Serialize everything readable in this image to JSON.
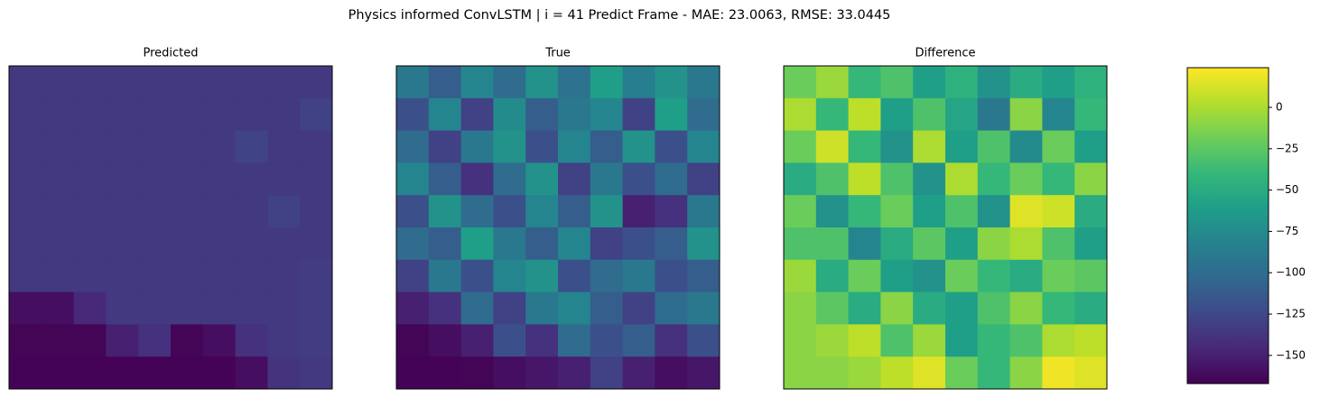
{
  "chart_data": {
    "type": "heatmap",
    "title": "Physics informed ConvLSTM | i = 41 Predict Frame - MAE: 23.0063, RMSE: 33.0445",
    "colormap": "viridis",
    "clim": [
      -167,
      24
    ],
    "cticks": [
      {
        "value": 0,
        "label": "0"
      },
      {
        "value": -25,
        "label": "−25"
      },
      {
        "value": -50,
        "label": "−50"
      },
      {
        "value": -75,
        "label": "−75"
      },
      {
        "value": -100,
        "label": "−100"
      },
      {
        "value": -125,
        "label": "−125"
      },
      {
        "value": -150,
        "label": "−150"
      }
    ],
    "panels": [
      {
        "title": "Predicted",
        "values": [
          [
            -135,
            -135,
            -135,
            -135,
            -135,
            -135,
            -135,
            -135,
            -135,
            -135
          ],
          [
            -135,
            -135,
            -135,
            -135,
            -135,
            -135,
            -135,
            -135,
            -135,
            -130
          ],
          [
            -135,
            -135,
            -135,
            -135,
            -135,
            -135,
            -135,
            -128,
            -135,
            -135
          ],
          [
            -135,
            -135,
            -135,
            -135,
            -135,
            -135,
            -135,
            -135,
            -135,
            -135
          ],
          [
            -135,
            -135,
            -135,
            -135,
            -135,
            -135,
            -135,
            -135,
            -130,
            -135
          ],
          [
            -135,
            -135,
            -135,
            -135,
            -135,
            -135,
            -135,
            -135,
            -135,
            -135
          ],
          [
            -135,
            -135,
            -135,
            -135,
            -135,
            -135,
            -135,
            -135,
            -135,
            -132
          ],
          [
            -160,
            -160,
            -145,
            -135,
            -135,
            -135,
            -135,
            -135,
            -135,
            -132
          ],
          [
            -165,
            -165,
            -165,
            -150,
            -140,
            -165,
            -160,
            -140,
            -135,
            -132
          ],
          [
            -166,
            -166,
            -166,
            -166,
            -166,
            -166,
            -166,
            -160,
            -138,
            -135
          ]
        ]
      },
      {
        "title": "True",
        "values": [
          [
            -90,
            -110,
            -80,
            -100,
            -70,
            -95,
            -60,
            -85,
            -70,
            -90
          ],
          [
            -120,
            -80,
            -130,
            -75,
            -110,
            -90,
            -80,
            -130,
            -60,
            -100
          ],
          [
            -100,
            -130,
            -90,
            -70,
            -120,
            -80,
            -110,
            -70,
            -120,
            -80
          ],
          [
            -80,
            -110,
            -140,
            -100,
            -70,
            -130,
            -90,
            -120,
            -100,
            -130
          ],
          [
            -120,
            -70,
            -100,
            -120,
            -80,
            -110,
            -70,
            -150,
            -140,
            -90
          ],
          [
            -100,
            -110,
            -60,
            -90,
            -110,
            -80,
            -130,
            -120,
            -110,
            -70
          ],
          [
            -130,
            -90,
            -120,
            -80,
            -70,
            -120,
            -100,
            -90,
            -120,
            -110
          ],
          [
            -150,
            -140,
            -100,
            -130,
            -90,
            -80,
            -110,
            -130,
            -100,
            -90
          ],
          [
            -165,
            -160,
            -150,
            -120,
            -140,
            -100,
            -120,
            -110,
            -140,
            -120
          ],
          [
            -166,
            -166,
            -165,
            -160,
            -155,
            -150,
            -130,
            -150,
            -160,
            -155
          ]
        ]
      },
      {
        "title": "Difference",
        "values": [
          [
            -20,
            -5,
            -40,
            -30,
            -60,
            -45,
            -70,
            -50,
            -60,
            -45
          ],
          [
            0,
            -40,
            5,
            -60,
            -30,
            -55,
            -90,
            -10,
            -80,
            -40
          ],
          [
            -20,
            10,
            -40,
            -70,
            0,
            -60,
            -30,
            -75,
            -20,
            -60
          ],
          [
            -50,
            -30,
            5,
            -30,
            -70,
            0,
            -40,
            -20,
            -40,
            -10
          ],
          [
            -20,
            -70,
            -40,
            -20,
            -60,
            -30,
            -70,
            15,
            10,
            -50
          ],
          [
            -30,
            -30,
            -80,
            -50,
            -25,
            -60,
            -10,
            0,
            -30,
            -60
          ],
          [
            -5,
            -50,
            -20,
            -60,
            -70,
            -20,
            -40,
            -50,
            -20,
            -25
          ],
          [
            -10,
            -25,
            -50,
            -10,
            -50,
            -60,
            -30,
            -10,
            -40,
            -50
          ],
          [
            -10,
            -5,
            5,
            -30,
            -5,
            -60,
            -40,
            -30,
            0,
            5
          ],
          [
            -10,
            -10,
            -5,
            5,
            15,
            -20,
            -40,
            -10,
            20,
            15
          ]
        ]
      }
    ]
  }
}
